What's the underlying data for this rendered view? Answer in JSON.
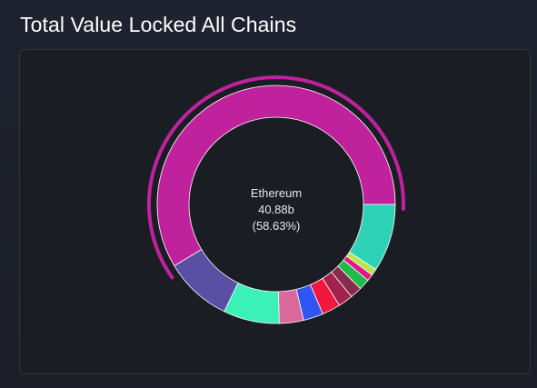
{
  "page": {
    "title": "Total Value Locked All Chains"
  },
  "chart_data": {
    "type": "pie",
    "variant": "donut",
    "title": "Total Value Locked All Chains",
    "active_slice": {
      "name": "Ethereum",
      "value_label": "40.88b",
      "percent_label": "(58.63%)"
    },
    "slices": [
      {
        "name": "Ethereum",
        "percent": 58.63,
        "color": "#c0229e"
      },
      {
        "name": "",
        "percent": 9.2,
        "color": "#2ed3b7"
      },
      {
        "name": "",
        "percent": 0.9,
        "color": "#bde34a"
      },
      {
        "name": "",
        "percent": 0.9,
        "color": "#e0198a"
      },
      {
        "name": "",
        "percent": 1.5,
        "color": "#1fbb4a"
      },
      {
        "name": "",
        "percent": 1.6,
        "color": "#8a2a4a"
      },
      {
        "name": "",
        "percent": 2.0,
        "color": "#a2214f"
      },
      {
        "name": "",
        "percent": 2.5,
        "color": "#f0183c"
      },
      {
        "name": "",
        "percent": 2.7,
        "color": "#2f55f5"
      },
      {
        "name": "",
        "percent": 3.3,
        "color": "#d9689c"
      },
      {
        "name": "",
        "percent": 7.6,
        "color": "#3af2b8"
      },
      {
        "name": "",
        "percent": 9.17,
        "color": "#5a4fa5"
      }
    ],
    "start_angle_deg": 90,
    "legend": "none"
  }
}
